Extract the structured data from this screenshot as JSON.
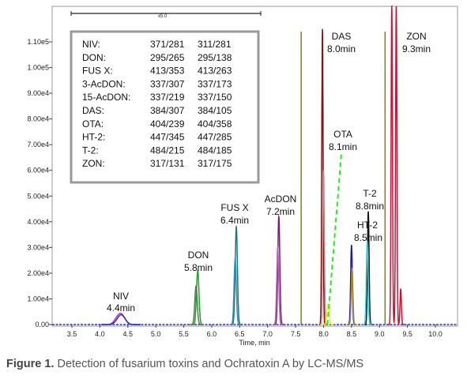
{
  "caption": {
    "figure_label": "Figure 1.",
    "text": " Detection of fusarium toxins and Ochratoxin A by LC-MS/MS"
  },
  "chart_data": {
    "type": "line",
    "title": "",
    "xlabel": "Time, min",
    "ylabel": "",
    "xlim": [
      3.2,
      10.3
    ],
    "ylim": [
      0,
      110000
    ],
    "x_ticks": [
      3.5,
      4.0,
      4.5,
      5.0,
      5.5,
      6.0,
      6.5,
      7.0,
      7.5,
      8.0,
      8.5,
      9.0,
      9.5,
      10.0
    ],
    "x_tick_labels": [
      "3.5",
      "4.0",
      "4.5",
      "5.0",
      "5.5",
      "6.0",
      "6.5",
      "7.0",
      "7.5",
      "8.0",
      "8.5",
      "9.0",
      "9.5",
      "10.0"
    ],
    "y_ticks": [
      0,
      10000,
      20000,
      30000,
      40000,
      50000,
      60000,
      70000,
      80000,
      90000,
      100000,
      110000
    ],
    "y_tick_labels": [
      "0.00",
      "1.00e4",
      "2.00e4",
      "3.00e4",
      "4.00e4",
      "5.00e4",
      "6.00e4",
      "7.00e4",
      "8.00e4",
      "9.00e4",
      "1.00e5",
      "1.10e5"
    ],
    "top_scale_label": "x5.0",
    "legend_title": "",
    "legend": [
      {
        "name": "NIV:",
        "t1": "371/281",
        "t2": "311/281"
      },
      {
        "name": "DON:",
        "t1": "295/265",
        "t2": "295/138"
      },
      {
        "name": "FUS X:",
        "t1": "413/353",
        "t2": "413/263"
      },
      {
        "name": "3-AcDON:",
        "t1": "337/307",
        "t2": "337/173"
      },
      {
        "name": "15-AcDON:",
        "t1": "337/219",
        "t2": "337/150"
      },
      {
        "name": "DAS:",
        "t1": "384/307",
        "t2": "384/105"
      },
      {
        "name": "OTA:",
        "t1": "404/239",
        "t2": "404/358"
      },
      {
        "name": "HT-2:",
        "t1": "447/345",
        "t2": "447/285"
      },
      {
        "name": "T-2:",
        "t1": "484/215",
        "t2": "484/185"
      },
      {
        "name": "ZON:",
        "t1": "317/131",
        "t2": "317/175"
      }
    ],
    "peak_labels": [
      {
        "name": "NIV",
        "time": "4.4min"
      },
      {
        "name": "DON",
        "time": "5.8min"
      },
      {
        "name": "FUS X",
        "time": "6.4min"
      },
      {
        "name": "AcDON",
        "time": "7.2min"
      },
      {
        "name": "DAS",
        "time": "8.0min"
      },
      {
        "name": "OTA",
        "time": "8.1min"
      },
      {
        "name": "HT-2",
        "time": "8.5min"
      },
      {
        "name": "T-2",
        "time": "8.8min"
      },
      {
        "name": "ZON",
        "time": "9.3min"
      }
    ],
    "vertical_markers": [
      7.6,
      9.1
    ],
    "marker_color": "#8a7a10",
    "series": [
      {
        "color": "#cc22cc",
        "peaks": [
          {
            "x": 4.4,
            "y": 3000,
            "w": 0.06
          },
          {
            "x": 4.32,
            "y": 2400,
            "w": 0.06
          }
        ]
      },
      {
        "color": "#2233cc",
        "peaks": [
          {
            "x": 4.38,
            "y": 3800,
            "w": 0.07
          }
        ]
      },
      {
        "color": "#11aa22",
        "peaks": [
          {
            "x": 5.75,
            "y": 21000,
            "w": 0.022
          }
        ]
      },
      {
        "color": "#557755",
        "peaks": [
          {
            "x": 5.72,
            "y": 15000,
            "w": 0.022
          }
        ]
      },
      {
        "color": "#1a7a7a",
        "peaks": [
          {
            "x": 6.44,
            "y": 38000,
            "w": 0.02
          }
        ]
      },
      {
        "color": "#3a8fb0",
        "peaks": [
          {
            "x": 6.42,
            "y": 26000,
            "w": 0.02
          }
        ]
      },
      {
        "color": "#7a1a7a",
        "peaks": [
          {
            "x": 7.2,
            "y": 42000,
            "w": 0.018
          }
        ]
      },
      {
        "color": "#b26ab2",
        "peaks": [
          {
            "x": 7.18,
            "y": 30000,
            "w": 0.018
          }
        ]
      },
      {
        "color": "#8b1010",
        "peaks": [
          {
            "x": 7.98,
            "y": 115000,
            "w": 0.012
          }
        ]
      },
      {
        "color": "#bb8888",
        "peaks": [
          {
            "x": 8.0,
            "y": 60000,
            "w": 0.014
          }
        ]
      },
      {
        "color": "#eeee22",
        "peaks": [
          {
            "x": 8.08,
            "y": 8000,
            "w": 0.02
          }
        ]
      },
      {
        "color": "#1a1aaa",
        "peaks": [
          {
            "x": 8.5,
            "y": 31000,
            "w": 0.015
          }
        ]
      },
      {
        "color": "#aa8833",
        "peaks": [
          {
            "x": 8.51,
            "y": 22000,
            "w": 0.015
          }
        ]
      },
      {
        "color": "#111111",
        "peaks": [
          {
            "x": 8.8,
            "y": 44000,
            "w": 0.014
          }
        ]
      },
      {
        "color": "#22dddd",
        "peaks": [
          {
            "x": 8.78,
            "y": 32000,
            "w": 0.016
          }
        ]
      },
      {
        "color": "#cc1133",
        "peaks": [
          {
            "x": 9.22,
            "y": 125000,
            "w": 0.012
          },
          {
            "x": 9.3,
            "y": 125000,
            "w": 0.012
          },
          {
            "x": 9.38,
            "y": 14000,
            "w": 0.012
          }
        ]
      }
    ],
    "ota_dashed": {
      "color": "#22ee22",
      "x0": 8.07,
      "y0": 0,
      "x1": 8.32,
      "y1": 67000
    }
  }
}
